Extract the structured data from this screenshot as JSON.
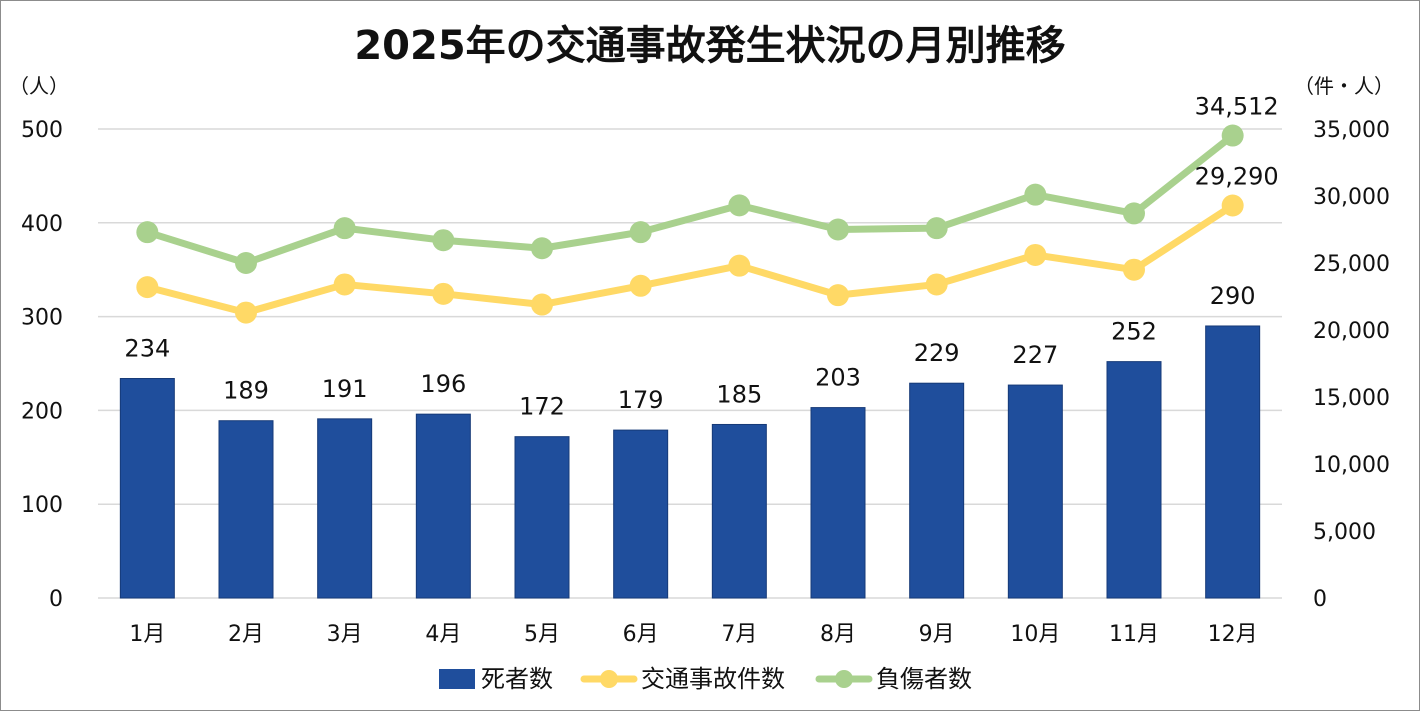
{
  "chart_data": {
    "type": "bar",
    "title": "2025年の交通事故発生状況の月別推移",
    "categories": [
      "1月",
      "2月",
      "3月",
      "4月",
      "5月",
      "6月",
      "7月",
      "8月",
      "9月",
      "10月",
      "11月",
      "12月"
    ],
    "y_left_unit": "（人）",
    "y_right_unit": "（件・人）",
    "y_left_lim": [
      0,
      500
    ],
    "y_left_ticks": [
      "0",
      "100",
      "200",
      "300",
      "400",
      "500"
    ],
    "y_right_lim": [
      0,
      35000
    ],
    "y_right_ticks": [
      "0",
      "5,000",
      "10,000",
      "15,000",
      "20,000",
      "25,000",
      "30,000",
      "35,000"
    ],
    "grid": true,
    "legend_position": "bottom",
    "series": [
      {
        "name": "死者数",
        "type": "bar",
        "axis": "left",
        "color": "#1f4e9c",
        "values": [
          234,
          189,
          191,
          196,
          172,
          179,
          185,
          203,
          229,
          227,
          252,
          290
        ],
        "labels": [
          "234",
          "189",
          "191",
          "196",
          "172",
          "179",
          "185",
          "203",
          "229",
          "227",
          "252",
          "290"
        ]
      },
      {
        "name": "交通事故件数",
        "type": "line",
        "axis": "right",
        "color": "#ffd966",
        "values": [
          23200,
          21300,
          23400,
          22700,
          21900,
          23300,
          24800,
          22600,
          23400,
          25600,
          24500,
          29290
        ],
        "labels": [
          "",
          "",
          "",
          "",
          "",
          "",
          "",
          "",
          "",
          "",
          "",
          "29,290"
        ]
      },
      {
        "name": "負傷者数",
        "type": "line",
        "axis": "right",
        "color": "#a9d18e",
        "values": [
          27300,
          25000,
          27600,
          26700,
          26100,
          27300,
          29300,
          27500,
          27600,
          30100,
          28700,
          34512
        ],
        "labels": [
          "",
          "",
          "",
          "",
          "",
          "",
          "",
          "",
          "",
          "",
          "",
          "34,512"
        ]
      }
    ]
  }
}
